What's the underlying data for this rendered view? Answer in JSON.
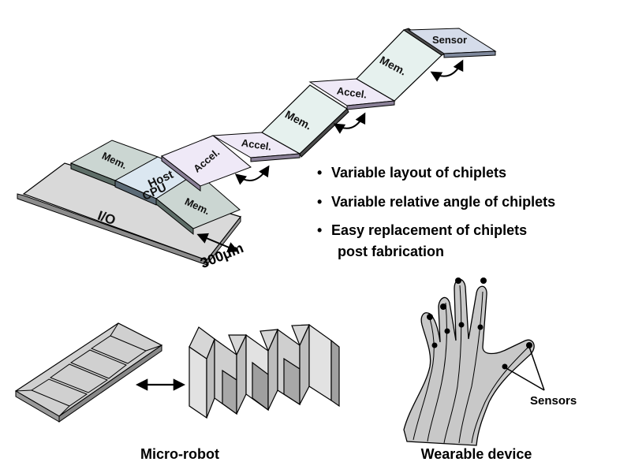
{
  "chiplets": {
    "io": "I/O",
    "mem_left": "Mem.",
    "host_cpu_line1": "Host",
    "host_cpu_line2": "CPU",
    "mem_bottom": "Mem.",
    "accel_1": "Accel.",
    "accel_2": "Accel.",
    "mem_mid": "Mem.",
    "accel_3": "Accel.",
    "mem_top": "Mem.",
    "sensor": "Sensor"
  },
  "scale_label": "300μm",
  "features": [
    "Variable layout of chiplets",
    "Variable relative angle of chiplets",
    "Easy replacement of chiplets"
  ],
  "feature_continuation": "post fabrication",
  "bullet_char": "•",
  "captions": {
    "micro_robot": "Micro-robot",
    "wearable": "Wearable device",
    "sensors": "Sensors"
  },
  "colors": {
    "io_face": "#d9d9d9",
    "mem_face": "#dde5e2",
    "mem_upright": "#e6f1ee",
    "cpu_face": "#dbe7f1",
    "accel_face": "#efe9f7",
    "sensor_face": "#d5dcea",
    "hand_fill": "#c8c8c8",
    "robot_face": "#bdbdbd"
  }
}
